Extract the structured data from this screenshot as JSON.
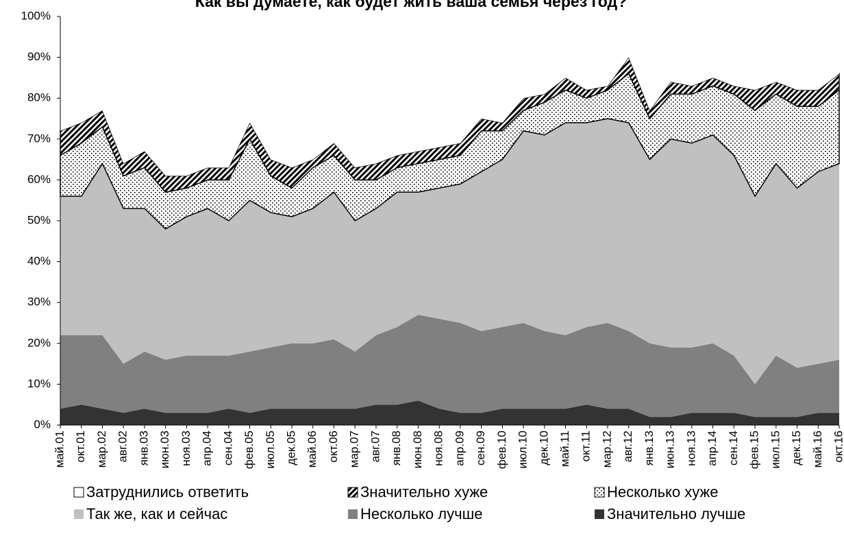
{
  "chart_data": {
    "type": "stacked_area",
    "title": "Как вы думаете, как будет жить ваша семья через год?",
    "categories": [
      "май.01",
      "окт.01",
      "мар.02",
      "авг.02",
      "янв.03",
      "июн.03",
      "ноя.03",
      "апр.04",
      "сен.04",
      "фев.05",
      "июл.05",
      "дек.05",
      "май.06",
      "окт.06",
      "мар.07",
      "авг.07",
      "янв.08",
      "июн.08",
      "ноя.08",
      "апр.09",
      "сен.09",
      "фев.10",
      "июл.10",
      "дек.10",
      "май.11",
      "окт.11",
      "мар.12",
      "авг.12",
      "янв.13",
      "июн.13",
      "ноя.13",
      "апр.14",
      "сен.14",
      "фев.15",
      "июл.15",
      "дек.15",
      "май.16",
      "окт.16"
    ],
    "series": [
      {
        "name": "Значительно лучше",
        "color": "#333333",
        "values": [
          4,
          5,
          4,
          3,
          4,
          3,
          3,
          3,
          4,
          3,
          4,
          4,
          4,
          4,
          4,
          5,
          5,
          6,
          4,
          3,
          3,
          4,
          4,
          4,
          4,
          5,
          4,
          4,
          2,
          2,
          3,
          3,
          3,
          2,
          2,
          2,
          3,
          3
        ]
      },
      {
        "name": "Несколько лучше",
        "color": "#808080",
        "values": [
          18,
          17,
          18,
          12,
          14,
          13,
          14,
          14,
          13,
          15,
          15,
          16,
          16,
          17,
          14,
          17,
          19,
          21,
          22,
          22,
          20,
          20,
          21,
          19,
          18,
          19,
          21,
          19,
          18,
          17,
          16,
          17,
          14,
          8,
          15,
          12,
          12,
          13
        ]
      },
      {
        "name": "Так же, как и сейчас",
        "color": "#c0c0c0",
        "values": [
          34,
          34,
          42,
          38,
          35,
          32,
          34,
          36,
          33,
          37,
          33,
          31,
          33,
          36,
          32,
          31,
          33,
          30,
          32,
          34,
          39,
          41,
          47,
          48,
          52,
          50,
          50,
          51,
          45,
          51,
          50,
          51,
          49,
          46,
          47,
          44,
          47,
          48
        ]
      },
      {
        "name": "Несколько хуже",
        "color": "#000000",
        "pattern": "dots",
        "values": [
          10,
          13,
          9,
          8,
          10,
          9,
          7,
          7,
          10,
          15,
          9,
          7,
          10,
          9,
          10,
          7,
          6,
          7,
          7,
          7,
          10,
          7,
          5,
          8,
          8,
          6,
          7,
          12,
          10,
          11,
          12,
          12,
          15,
          21,
          17,
          20,
          16,
          18
        ]
      },
      {
        "name": "Значительно хуже",
        "color": "#000000",
        "pattern": "hatch",
        "values": [
          6,
          5,
          4,
          3,
          4,
          4,
          3,
          3,
          3,
          4,
          4,
          5,
          2,
          3,
          3,
          4,
          3,
          3,
          3,
          3,
          3,
          2,
          3,
          2,
          3,
          2,
          1,
          4,
          2,
          3,
          2,
          2,
          2,
          5,
          3,
          4,
          4,
          4
        ]
      },
      {
        "name": "Затруднились ответить",
        "color": "#ffffff",
        "values": [
          28,
          26,
          23,
          36,
          33,
          39,
          39,
          37,
          37,
          26,
          35,
          37,
          35,
          31,
          37,
          36,
          34,
          33,
          32,
          31,
          25,
          26,
          20,
          19,
          15,
          18,
          17,
          10,
          23,
          16,
          17,
          15,
          17,
          18,
          16,
          18,
          18,
          14
        ]
      }
    ],
    "ylim": [
      0,
      100
    ],
    "yticks": [
      {
        "value": 0,
        "label": "0%"
      },
      {
        "value": 10,
        "label": "10%"
      },
      {
        "value": 20,
        "label": "20%"
      },
      {
        "value": 30,
        "label": "30%"
      },
      {
        "value": 40,
        "label": "40%"
      },
      {
        "value": 50,
        "label": "50%"
      },
      {
        "value": 60,
        "label": "60%"
      },
      {
        "value": 70,
        "label": "70%"
      },
      {
        "value": 80,
        "label": "80%"
      },
      {
        "value": 90,
        "label": "90%"
      },
      {
        "value": 100,
        "label": "100%"
      }
    ]
  }
}
